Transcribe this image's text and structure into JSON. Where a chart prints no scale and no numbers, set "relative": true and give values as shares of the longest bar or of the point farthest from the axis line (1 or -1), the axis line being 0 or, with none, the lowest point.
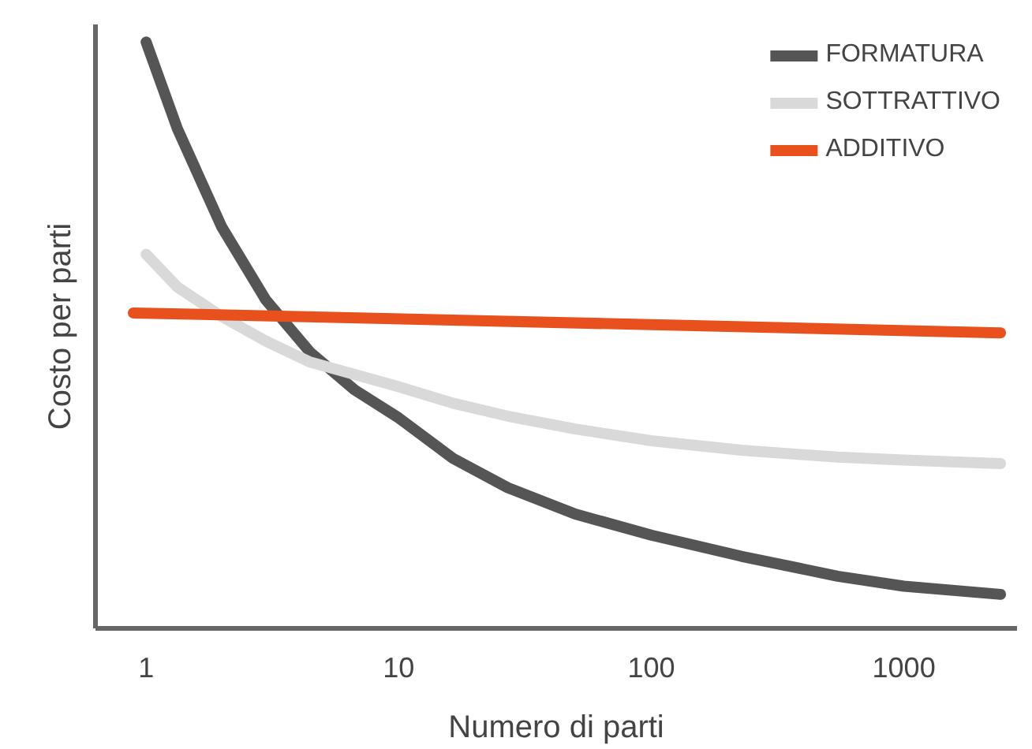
{
  "chart_data": {
    "type": "line",
    "relative": true,
    "xlabel": "Numero di parti",
    "ylabel": "Costo per parti",
    "log": "x",
    "xlim": [
      0.63,
      2805
    ],
    "xticks": [
      1,
      10,
      100,
      1000
    ],
    "legend": "top right",
    "grid": false,
    "marker": "none",
    "line_style": "solid",
    "series": [
      {
        "name": "FORMATURA",
        "color": "#555555",
        "x": [
          1,
          1.33,
          1.99,
          2.98,
          4.46,
          6.68,
          10,
          16.4,
          27,
          50,
          100,
          227,
          547,
          1000,
          2414
        ],
        "values": [
          1,
          0.852,
          0.685,
          0.56,
          0.471,
          0.407,
          0.359,
          0.29,
          0.24,
          0.195,
          0.159,
          0.123,
          0.089,
          0.072,
          0.058
        ]
      },
      {
        "name": "SOTTRATTIVO",
        "color": "#d9d9d9",
        "x": [
          1,
          1.33,
          1.99,
          2.98,
          4.46,
          10,
          16.4,
          27,
          50,
          100,
          227,
          547,
          1000,
          2414
        ],
        "values": [
          0.638,
          0.582,
          0.532,
          0.49,
          0.454,
          0.412,
          0.384,
          0.362,
          0.34,
          0.32,
          0.304,
          0.292,
          0.287,
          0.281
        ]
      },
      {
        "name": "ADDITIVO",
        "color": "#e8501e",
        "x": [
          0.89,
          100,
          2414
        ],
        "values": [
          0.538,
          0.518,
          0.504
        ]
      }
    ]
  }
}
